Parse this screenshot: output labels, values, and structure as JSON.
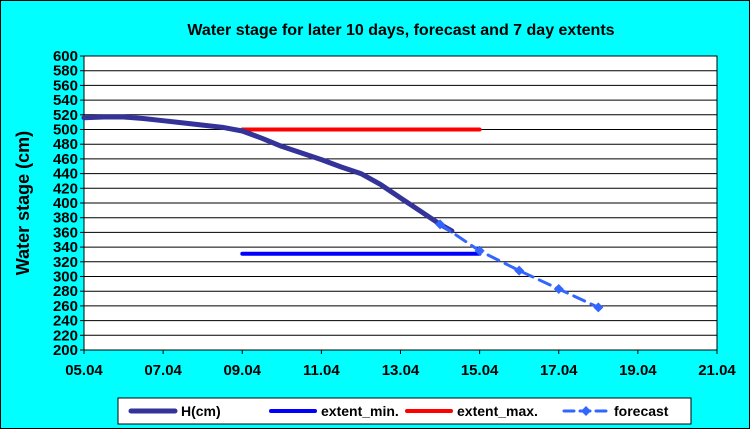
{
  "chart_data": {
    "type": "line",
    "title": "Water stage for later 10 days, forecast and 7 day extents",
    "xlabel": "",
    "ylabel": "Water stage  (cm)",
    "x_tick_labels": [
      "05.04",
      "07.04",
      "09.04",
      "11.04",
      "13.04",
      "15.04",
      "17.04",
      "19.04",
      "21.04"
    ],
    "xlim": [
      5,
      21
    ],
    "ylim": [
      200,
      600
    ],
    "y_ticks": [
      200,
      220,
      240,
      260,
      280,
      300,
      320,
      340,
      360,
      380,
      400,
      420,
      440,
      460,
      480,
      500,
      520,
      540,
      560,
      580,
      600
    ],
    "grid": "horizontal",
    "legend_position": "bottom",
    "series": [
      {
        "name": "H(cm)",
        "color": "#333399",
        "style": "solid-thick",
        "x": [
          5,
          5.5,
          6,
          6.5,
          7,
          7.5,
          8,
          8.5,
          9,
          9.5,
          10,
          10.5,
          11,
          11.5,
          12,
          12.5,
          13,
          13.5,
          14,
          14.3
        ],
        "y": [
          516,
          517,
          517,
          515,
          512,
          509,
          506,
          503,
          498,
          488,
          477,
          468,
          459,
          449,
          440,
          425,
          407,
          389,
          371,
          362
        ]
      },
      {
        "name": "extent_min.",
        "color": "#0000ff",
        "style": "solid",
        "x": [
          9,
          15
        ],
        "y": [
          331,
          331
        ]
      },
      {
        "name": "extent_max.",
        "color": "#ff0000",
        "style": "solid",
        "x": [
          9,
          15
        ],
        "y": [
          500,
          500
        ]
      },
      {
        "name": "forecast",
        "color": "#3366ff",
        "style": "dashed-diamond",
        "x": [
          14,
          15,
          16,
          17,
          18
        ],
        "y": [
          371,
          335,
          308,
          283,
          258
        ]
      }
    ]
  }
}
